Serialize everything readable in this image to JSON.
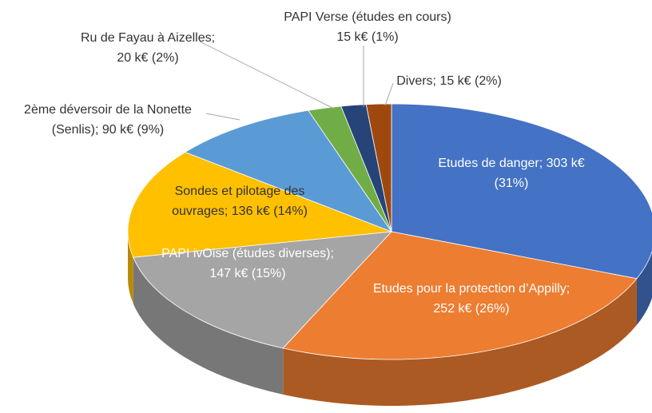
{
  "chart_data": {
    "type": "pie3d",
    "values": [
      303,
      252,
      147,
      136,
      90,
      20,
      15,
      15
    ],
    "value_labels": [
      [
        "Etudes de danger; 303 k€",
        "(31%)"
      ],
      [
        "Etudes pour la protection d’Appilly;",
        "252 k€ (26%)"
      ],
      [
        "PAPI ivOise (études diverses);",
        "147 k€ (15%)"
      ],
      [
        "Sondes et pilotage des",
        "ouvrages; 136 k€ (14%)"
      ],
      [
        "2ème déversoir de la Nonette",
        "(Senlis); 90 k€ (9%)"
      ],
      [
        "Ru de Fayau à Aizelles;",
        "20 k€ (2%)"
      ],
      [
        "PAPI Verse (études en cours)",
        "15 k€ (1%)"
      ],
      [
        "Divers; 15 k€ (2%)"
      ]
    ],
    "colors": [
      "#4472c4",
      "#ed7d31",
      "#a5a5a5",
      "#ffc000",
      "#5b9bd5",
      "#70ad47",
      "#264478",
      "#9e480e"
    ]
  }
}
